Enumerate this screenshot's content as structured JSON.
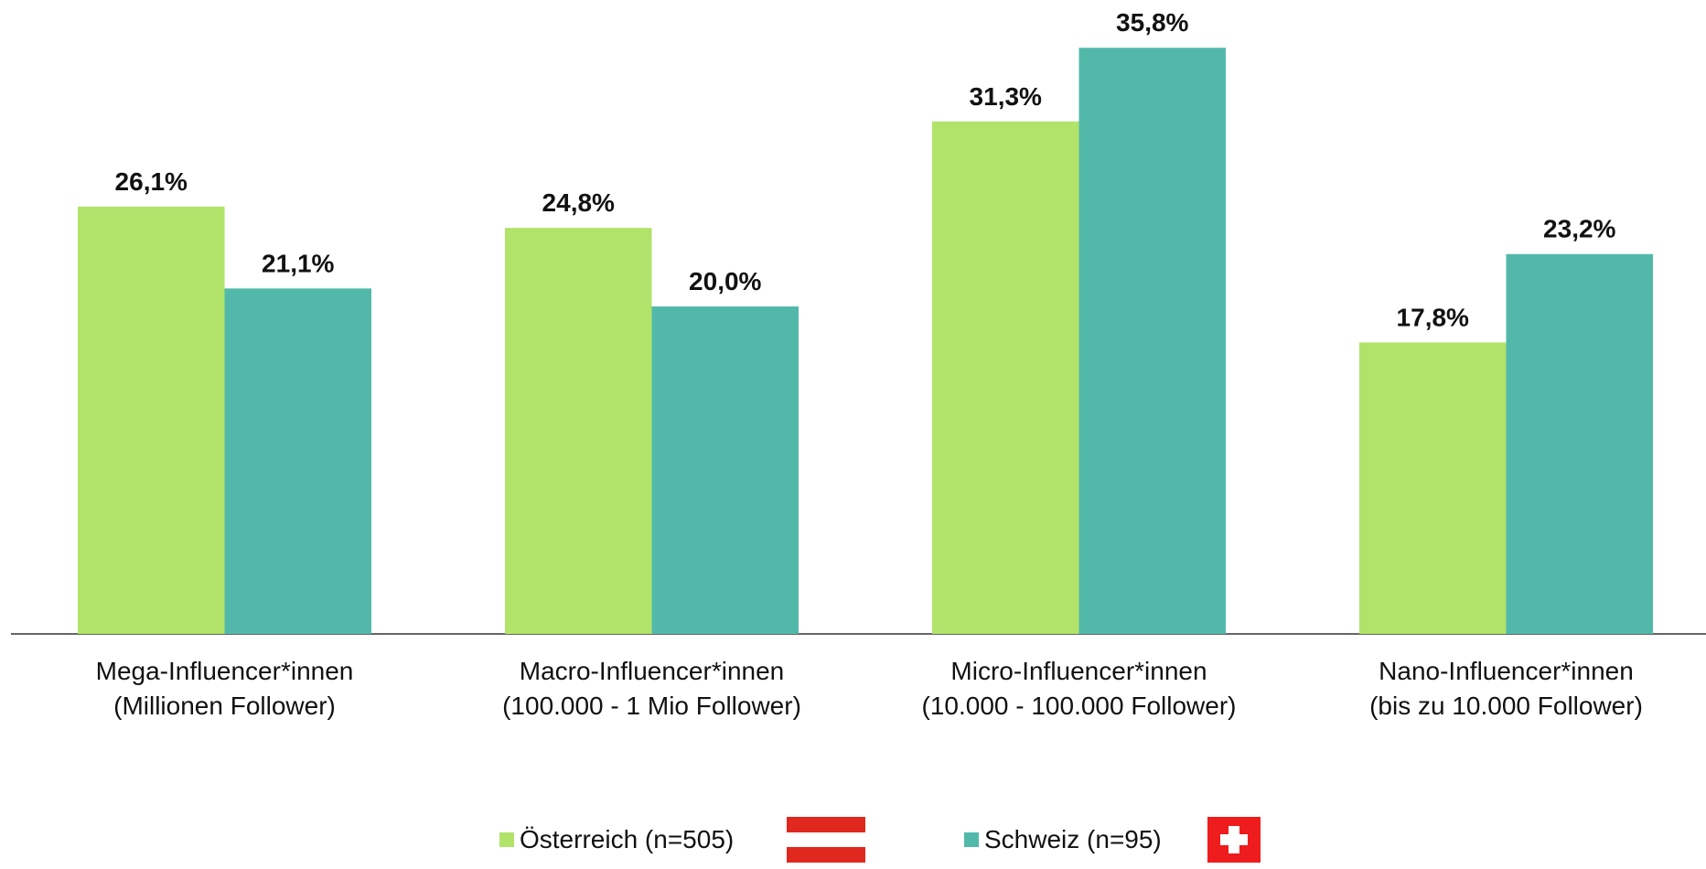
{
  "chart_data": {
    "type": "bar",
    "categories": [
      "Mega-Influencer*innen\n(Millionen Follower)",
      "Macro-Influencer*innen\n(100.000 - 1 Mio Follower)",
      "Micro-Influencer*innen\n(10.000 - 100.000 Follower)",
      "Nano-Influencer*innen\n(bis zu 10.000 Follower)"
    ],
    "series": [
      {
        "name": "Österreich (n=505)",
        "color": "#b1e36a",
        "values": [
          26.1,
          24.8,
          31.3,
          17.8
        ],
        "value_labels": [
          "26,1%",
          "24,8%",
          "31,3%",
          "17,8%"
        ]
      },
      {
        "name": "Schweiz (n=95)",
        "color": "#52b9aa",
        "values": [
          21.1,
          20.0,
          35.8,
          23.2
        ],
        "value_labels": [
          "21,1%",
          "20,0%",
          "35,8%",
          "23,2%"
        ]
      }
    ],
    "ylim": [
      0,
      37.6
    ],
    "legend": "bottom"
  }
}
